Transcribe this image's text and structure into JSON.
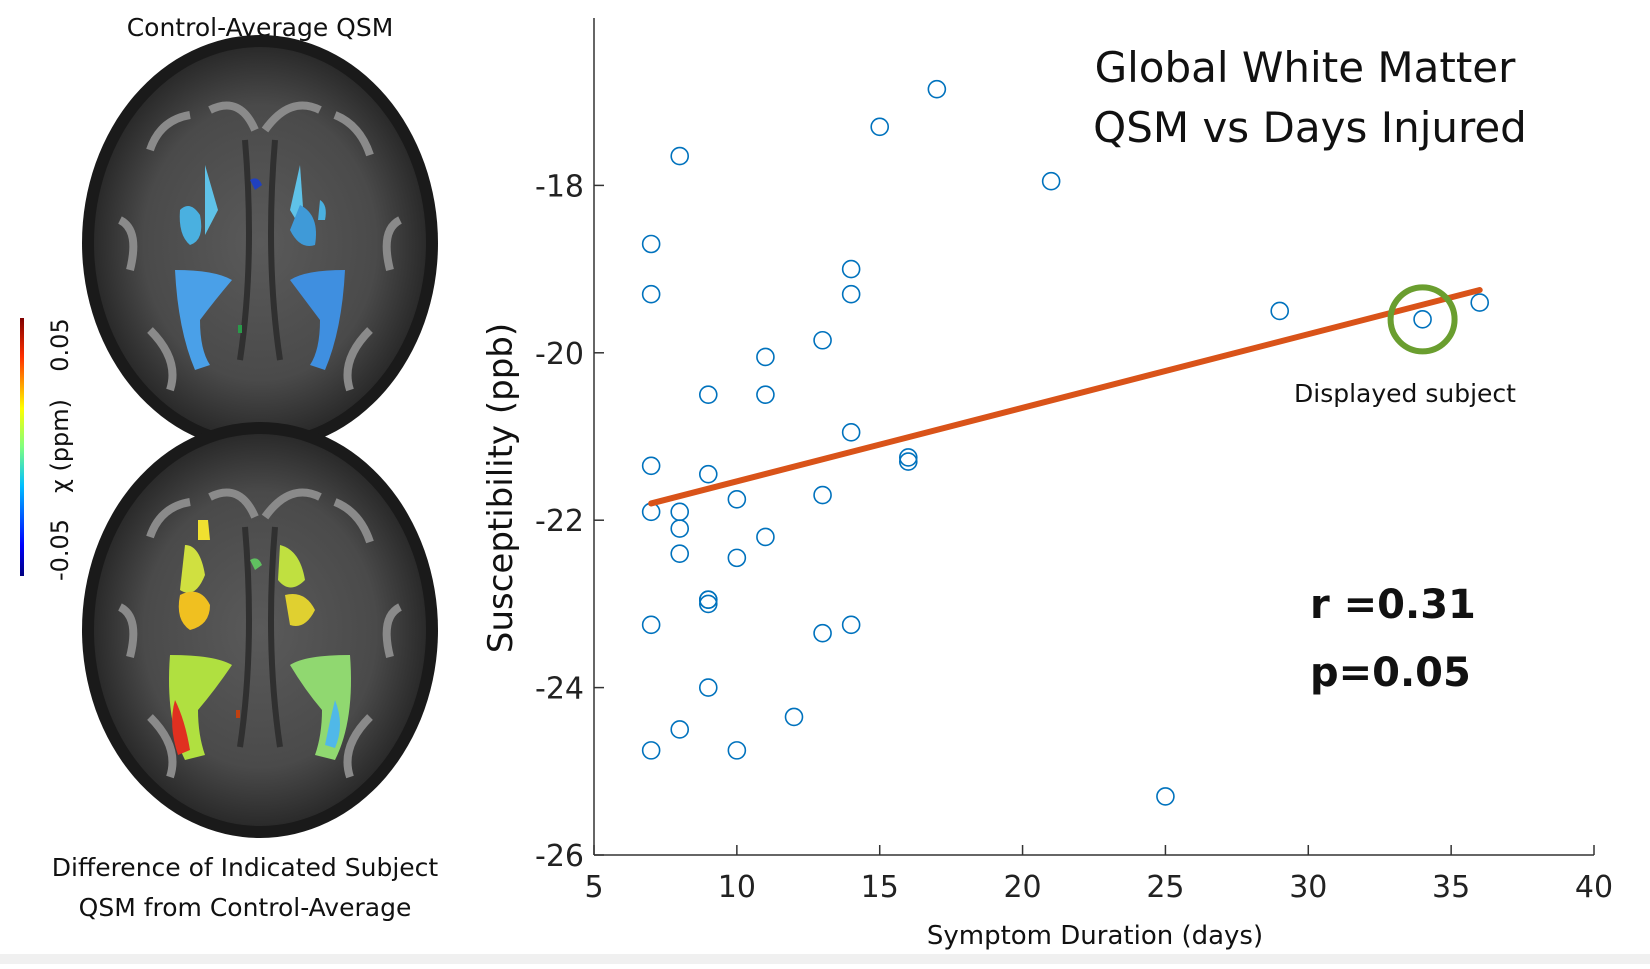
{
  "left_panel": {
    "top_title": "Control-Average QSM",
    "bottom_caption_line1": "Difference of Indicated Subject",
    "bottom_caption_line2": "QSM from Control-Average",
    "colorbar": {
      "label": "χ (ppm)",
      "max_label": "0.05",
      "min_label": "-0.05"
    }
  },
  "chart_data": {
    "type": "scatter",
    "title_line1": "Global White Matter",
    "title_line2": "QSM  vs Days Injured",
    "xlabel": "Symptom Duration (days)",
    "ylabel": "Susceptibility (ppb)",
    "xlim": [
      5,
      40
    ],
    "ylim": [
      -26,
      -16
    ],
    "xticks": [
      "5",
      "10",
      "15",
      "20",
      "25",
      "30",
      "35",
      "40"
    ],
    "yticks": [
      "-18",
      "-20",
      "-22",
      "-24",
      "-26"
    ],
    "x": [
      7,
      7,
      7,
      7,
      7,
      7,
      8,
      8,
      8,
      8,
      8,
      9,
      9,
      9,
      9,
      9,
      9,
      10,
      10,
      10,
      11,
      11,
      11,
      12,
      13,
      13,
      13,
      14,
      14,
      14,
      14,
      15,
      16,
      16,
      17,
      21,
      25,
      29,
      34,
      36
    ],
    "y": [
      -18.7,
      -19.3,
      -21.35,
      -21.9,
      -23.25,
      -24.75,
      -17.65,
      -21.9,
      -22.1,
      -22.4,
      -24.5,
      -20.5,
      -21.45,
      -22.95,
      -23.0,
      -24.0,
      -22.95,
      -21.75,
      -22.45,
      -24.75,
      -20.05,
      -20.5,
      -22.2,
      -24.35,
      -19.85,
      -21.7,
      -23.35,
      -19.0,
      -19.3,
      -20.95,
      -23.25,
      -17.3,
      -21.25,
      -21.3,
      -16.85,
      -17.95,
      -25.3,
      -19.5,
      -19.6,
      -19.4
    ],
    "fit_line": {
      "x": [
        7,
        36
      ],
      "y": [
        -21.8,
        -19.25
      ],
      "color": "#d95319"
    },
    "marker_color": "#0072bd",
    "highlight": {
      "x": 34,
      "y": -19.6,
      "color": "#6a9e2f",
      "label": "Displayed subject"
    },
    "stats": {
      "r": "r =0.31",
      "p": "p=0.05"
    }
  }
}
